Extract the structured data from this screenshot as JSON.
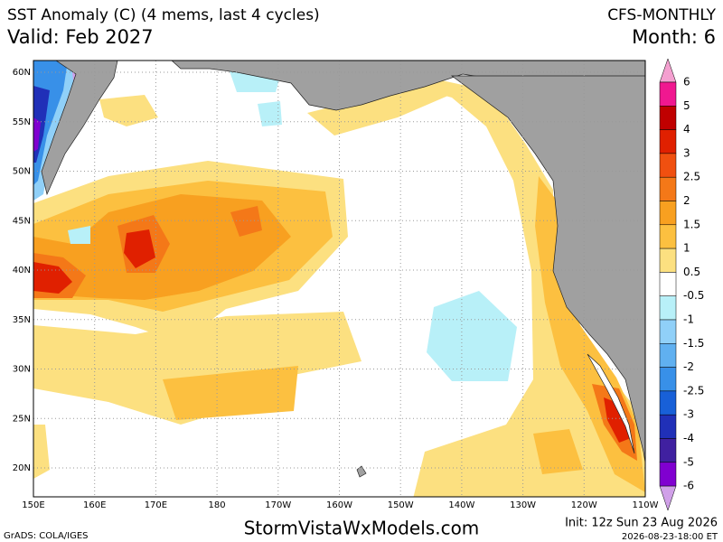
{
  "header": {
    "title": "SST Anomaly (C) (4 mems, last 4 cycles)",
    "valid": "Valid: Feb 2027",
    "model": "CFS-MONTHLY",
    "month": "Month: 6"
  },
  "map": {
    "lat_labels": [
      "60N",
      "55N",
      "50N",
      "45N",
      "40N",
      "35N",
      "30N",
      "25N",
      "20N"
    ],
    "lon_labels": [
      "150E",
      "160E",
      "170E",
      "180",
      "170W",
      "160W",
      "150W",
      "140W",
      "130W",
      "120W",
      "110W"
    ]
  },
  "colorbar": {
    "labels": [
      6,
      5,
      4,
      3,
      2.5,
      2,
      1.5,
      1,
      0.5,
      -0.5,
      -1,
      -1.5,
      -2,
      -2.5,
      -3,
      -4,
      -5,
      -6
    ],
    "colors": [
      "#f4a0d0",
      "#f01890",
      "#c00000",
      "#e02000",
      "#f05010",
      "#f47818",
      "#f8a020",
      "#fcc040",
      "#fce080",
      "#ffffff",
      "#b8f0f8",
      "#90d0f8",
      "#60b0f0",
      "#3890e8",
      "#1860d8",
      "#2030b8",
      "#4020a0",
      "#8000d0",
      "#d0a0e8"
    ]
  },
  "footer": {
    "credit": "GrADS: COLA/IGES",
    "site": "StormVistaWxModels.com",
    "init": "Init: 12z Sun 23 Aug 2026",
    "timestamp": "2026-08-23-18:00 ET"
  }
}
